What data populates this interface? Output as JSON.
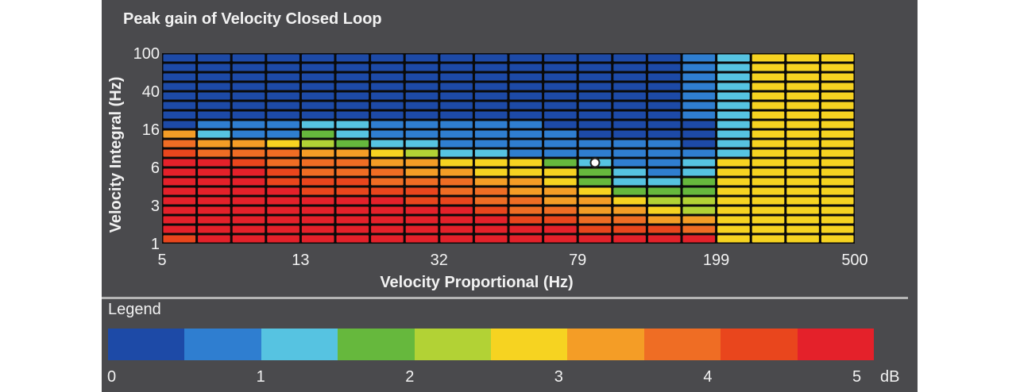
{
  "chart_data": {
    "type": "heatmap",
    "title": "Peak gain of Velocity Closed Loop",
    "xlabel": "Velocity Proportional (Hz)",
    "ylabel": "Velocity Integral (Hz)",
    "x_ticks": [
      "5",
      "13",
      "32",
      "79",
      "199",
      "500"
    ],
    "y_ticks": [
      "100",
      "40",
      "16",
      "6",
      "3",
      "1"
    ],
    "x_scale": "log",
    "y_scale": "log",
    "xlim": [
      5,
      500
    ],
    "ylim": [
      1,
      100
    ],
    "columns": 20,
    "rows": 20,
    "marker": {
      "column": 12,
      "row": 11
    },
    "values": [
      [
        0,
        0,
        0,
        0,
        0,
        0,
        0,
        0,
        0,
        0,
        0,
        0,
        0,
        0,
        0,
        1,
        2,
        5,
        5,
        5
      ],
      [
        0,
        0,
        0,
        0,
        0,
        0,
        0,
        0,
        0,
        0,
        0,
        0,
        0,
        0,
        0,
        1,
        2,
        5,
        5,
        5
      ],
      [
        0,
        0,
        0,
        0,
        0,
        0,
        0,
        0,
        0,
        0,
        0,
        0,
        0,
        0,
        0,
        1,
        2,
        5,
        5,
        5
      ],
      [
        0,
        0,
        0,
        0,
        0,
        0,
        0,
        0,
        0,
        0,
        0,
        0,
        0,
        0,
        0,
        1,
        2,
        5,
        5,
        5
      ],
      [
        0,
        0,
        0,
        0,
        0,
        0,
        0,
        0,
        0,
        0,
        0,
        0,
        0,
        0,
        0,
        1,
        2,
        5,
        5,
        5
      ],
      [
        0,
        0,
        0,
        0,
        0,
        0,
        0,
        0,
        0,
        0,
        0,
        0,
        0,
        0,
        0,
        1,
        2,
        5,
        5,
        5
      ],
      [
        0,
        0,
        0,
        0,
        0,
        0,
        0,
        0,
        0,
        0,
        0,
        0,
        0,
        0,
        0,
        1,
        2,
        5,
        5,
        5
      ],
      [
        0,
        1,
        1,
        1,
        2,
        2,
        1,
        1,
        1,
        1,
        1,
        0,
        0,
        0,
        0,
        0,
        2,
        5,
        5,
        5
      ],
      [
        6,
        2,
        1,
        1,
        3,
        2,
        1,
        1,
        1,
        1,
        1,
        1,
        0,
        0,
        0,
        0,
        2,
        5,
        5,
        5
      ],
      [
        7,
        6,
        6,
        5,
        4,
        3,
        2,
        2,
        1,
        1,
        1,
        1,
        1,
        1,
        1,
        0,
        2,
        5,
        5,
        5
      ],
      [
        8,
        7,
        7,
        7,
        6,
        6,
        5,
        4,
        2,
        2,
        1,
        1,
        1,
        1,
        1,
        1,
        2,
        5,
        5,
        5
      ],
      [
        9,
        9,
        8,
        7,
        7,
        7,
        6,
        6,
        5,
        5,
        5,
        3,
        2,
        1,
        1,
        2,
        5,
        5,
        5,
        5
      ],
      [
        9,
        9,
        9,
        8,
        7,
        7,
        7,
        6,
        6,
        5,
        5,
        5,
        3,
        2,
        1,
        2,
        5,
        5,
        5,
        5
      ],
      [
        9,
        9,
        9,
        8,
        8,
        8,
        7,
        7,
        7,
        6,
        6,
        5,
        3,
        2,
        2,
        3,
        5,
        5,
        5,
        5
      ],
      [
        9,
        9,
        9,
        9,
        8,
        8,
        8,
        8,
        7,
        7,
        6,
        6,
        5,
        3,
        3,
        3,
        5,
        5,
        5,
        5
      ],
      [
        9,
        9,
        9,
        9,
        9,
        9,
        9,
        8,
        8,
        7,
        7,
        6,
        6,
        5,
        4,
        4,
        5,
        5,
        5,
        5
      ],
      [
        9,
        9,
        9,
        9,
        9,
        9,
        9,
        9,
        9,
        8,
        7,
        7,
        6,
        6,
        5,
        4,
        5,
        5,
        5,
        5
      ],
      [
        9,
        9,
        9,
        9,
        9,
        9,
        9,
        9,
        9,
        9,
        8,
        8,
        7,
        7,
        6,
        6,
        5,
        5,
        5,
        5
      ],
      [
        9,
        9,
        9,
        9,
        9,
        9,
        9,
        9,
        9,
        9,
        9,
        9,
        8,
        8,
        8,
        7,
        5,
        5,
        5,
        5
      ],
      [
        8,
        9,
        9,
        9,
        9,
        9,
        9,
        9,
        9,
        9,
        9,
        9,
        9,
        9,
        9,
        9,
        5,
        5,
        5,
        5
      ]
    ],
    "legend": {
      "title": "Legend",
      "ticks": [
        "0",
        "1",
        "2",
        "3",
        "4",
        "5"
      ],
      "unit": "dB",
      "colors": [
        "#1d4aa7",
        "#2f7ed0",
        "#56c3e1",
        "#66b83d",
        "#b2d235",
        "#f6d321",
        "#f49d26",
        "#ef6d24",
        "#e9461d",
        "#e4212a"
      ]
    }
  }
}
